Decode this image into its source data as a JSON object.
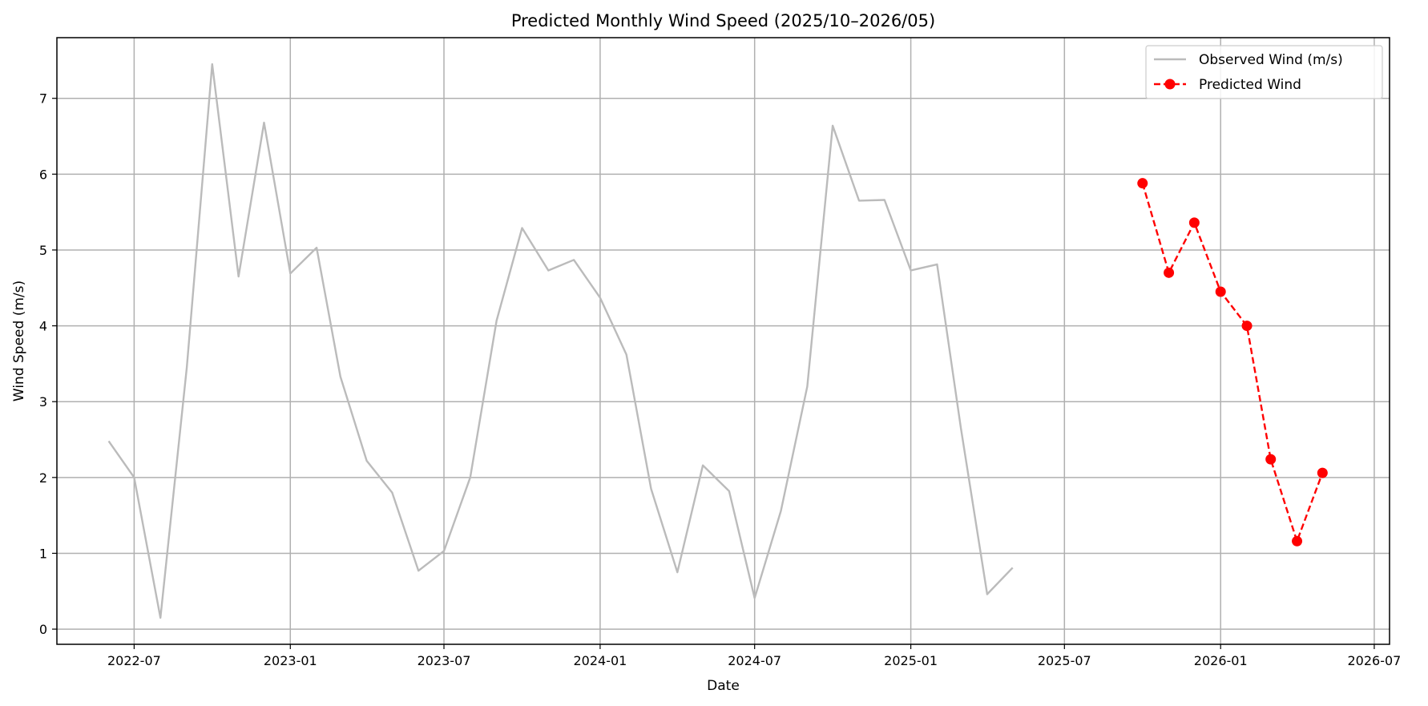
{
  "chart_data": {
    "type": "line",
    "title": "Predicted Monthly Wind Speed (2025/10–2026/05)",
    "xlabel": "Date",
    "ylabel": "Wind Speed (m/s)",
    "xlim": [
      "2022-04-01",
      "2026-07-19"
    ],
    "ylim": [
      -0.2,
      7.8
    ],
    "x_ticks": [
      "2022-07",
      "2023-01",
      "2023-07",
      "2024-01",
      "2024-07",
      "2025-01",
      "2025-07",
      "2026-01",
      "2026-07"
    ],
    "y_ticks": [
      0,
      1,
      2,
      3,
      4,
      5,
      6,
      7
    ],
    "grid": true,
    "legend_position": "top-right",
    "series": [
      {
        "name": "Observed Wind (m/s)",
        "color": "#bbbbbb",
        "style": "solid",
        "marker": "none",
        "points": [
          {
            "x": "2022-06-01",
            "y": 2.48
          },
          {
            "x": "2022-07-01",
            "y": 2.0
          },
          {
            "x": "2022-08-01",
            "y": 0.15
          },
          {
            "x": "2022-09-01",
            "y": 3.45
          },
          {
            "x": "2022-10-01",
            "y": 7.45
          },
          {
            "x": "2022-11-01",
            "y": 4.65
          },
          {
            "x": "2022-12-01",
            "y": 6.68
          },
          {
            "x": "2023-01-01",
            "y": 4.69
          },
          {
            "x": "2023-02-01",
            "y": 5.03
          },
          {
            "x": "2023-03-01",
            "y": 3.33
          },
          {
            "x": "2023-04-01",
            "y": 2.22
          },
          {
            "x": "2023-05-01",
            "y": 1.8
          },
          {
            "x": "2023-06-01",
            "y": 0.77
          },
          {
            "x": "2023-07-01",
            "y": 1.03
          },
          {
            "x": "2023-08-01",
            "y": 2.0
          },
          {
            "x": "2023-09-01",
            "y": 4.07
          },
          {
            "x": "2023-10-01",
            "y": 5.29
          },
          {
            "x": "2023-11-01",
            "y": 4.73
          },
          {
            "x": "2023-12-01",
            "y": 4.87
          },
          {
            "x": "2024-01-01",
            "y": 4.37
          },
          {
            "x": "2024-02-01",
            "y": 3.62
          },
          {
            "x": "2024-03-01",
            "y": 1.85
          },
          {
            "x": "2024-04-01",
            "y": 0.75
          },
          {
            "x": "2024-05-01",
            "y": 2.16
          },
          {
            "x": "2024-06-01",
            "y": 1.82
          },
          {
            "x": "2024-07-01",
            "y": 0.41
          },
          {
            "x": "2024-08-01",
            "y": 1.56
          },
          {
            "x": "2024-09-01",
            "y": 3.2
          },
          {
            "x": "2024-10-01",
            "y": 6.64
          },
          {
            "x": "2024-11-01",
            "y": 5.65
          },
          {
            "x": "2024-12-01",
            "y": 5.66
          },
          {
            "x": "2025-01-01",
            "y": 4.73
          },
          {
            "x": "2025-02-01",
            "y": 4.81
          },
          {
            "x": "2025-03-01",
            "y": 2.65
          },
          {
            "x": "2025-04-01",
            "y": 0.46
          },
          {
            "x": "2025-05-01",
            "y": 0.81
          }
        ]
      },
      {
        "name": "Predicted Wind",
        "color": "#ff0000",
        "style": "dashed",
        "marker": "circle",
        "points": [
          {
            "x": "2025-10-01",
            "y": 5.88
          },
          {
            "x": "2025-11-01",
            "y": 4.7
          },
          {
            "x": "2025-12-01",
            "y": 5.36
          },
          {
            "x": "2026-01-01",
            "y": 4.45
          },
          {
            "x": "2026-02-01",
            "y": 4.0
          },
          {
            "x": "2026-03-01",
            "y": 2.24
          },
          {
            "x": "2026-04-01",
            "y": 1.16
          },
          {
            "x": "2026-05-01",
            "y": 2.06
          }
        ]
      }
    ]
  }
}
